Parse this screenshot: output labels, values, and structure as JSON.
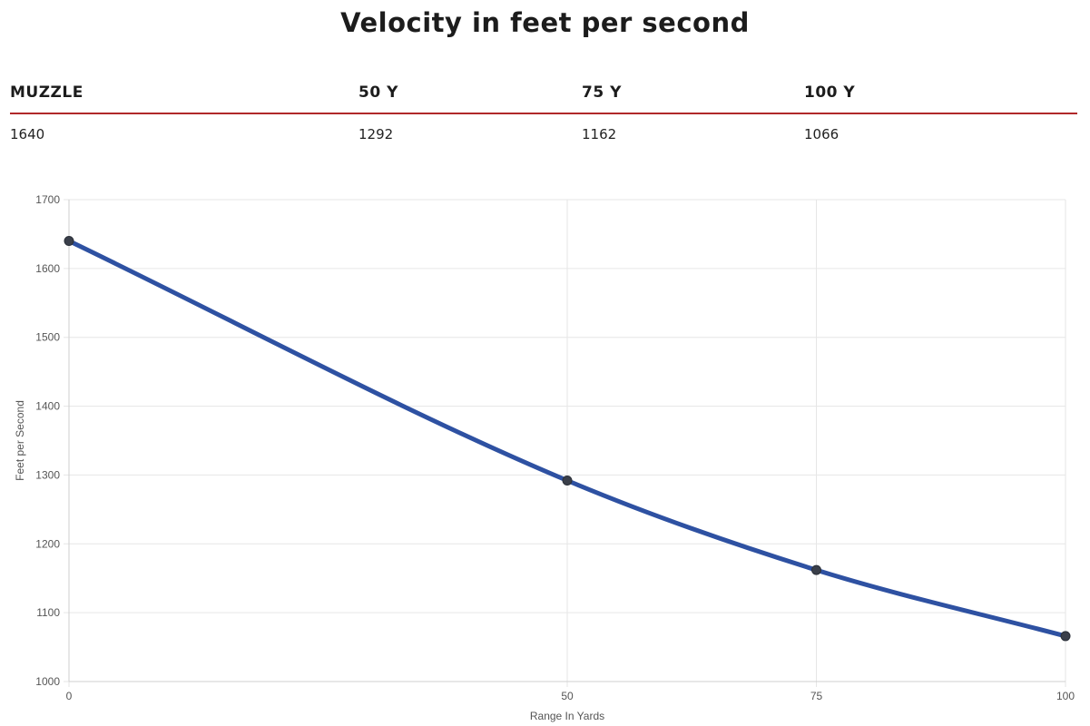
{
  "title": "Velocity in feet per second",
  "table": {
    "headers": [
      "MUZZLE",
      "50 Y",
      "75 Y",
      "100 Y"
    ],
    "values": [
      "1640",
      "1292",
      "1162",
      "1066"
    ]
  },
  "colors": {
    "line": "#2e51a2",
    "point": "#3a3f4a",
    "accent": "#b0282a",
    "grid": "#e6e6e6"
  },
  "chart_data": {
    "type": "line",
    "x": [
      0,
      50,
      75,
      100
    ],
    "series": [
      {
        "values": [
          1640,
          1292,
          1162,
          1066
        ]
      }
    ],
    "xlabel": "Range In Yards",
    "ylabel": "Feet per Second",
    "xlim": [
      0,
      100
    ],
    "ylim": [
      1000,
      1700
    ],
    "xticks": [
      "0",
      "50",
      "75",
      "100"
    ],
    "yticks": [
      "1000",
      "1100",
      "1200",
      "1300",
      "1400",
      "1500",
      "1600",
      "1700"
    ],
    "grid": true,
    "legend": "none"
  }
}
